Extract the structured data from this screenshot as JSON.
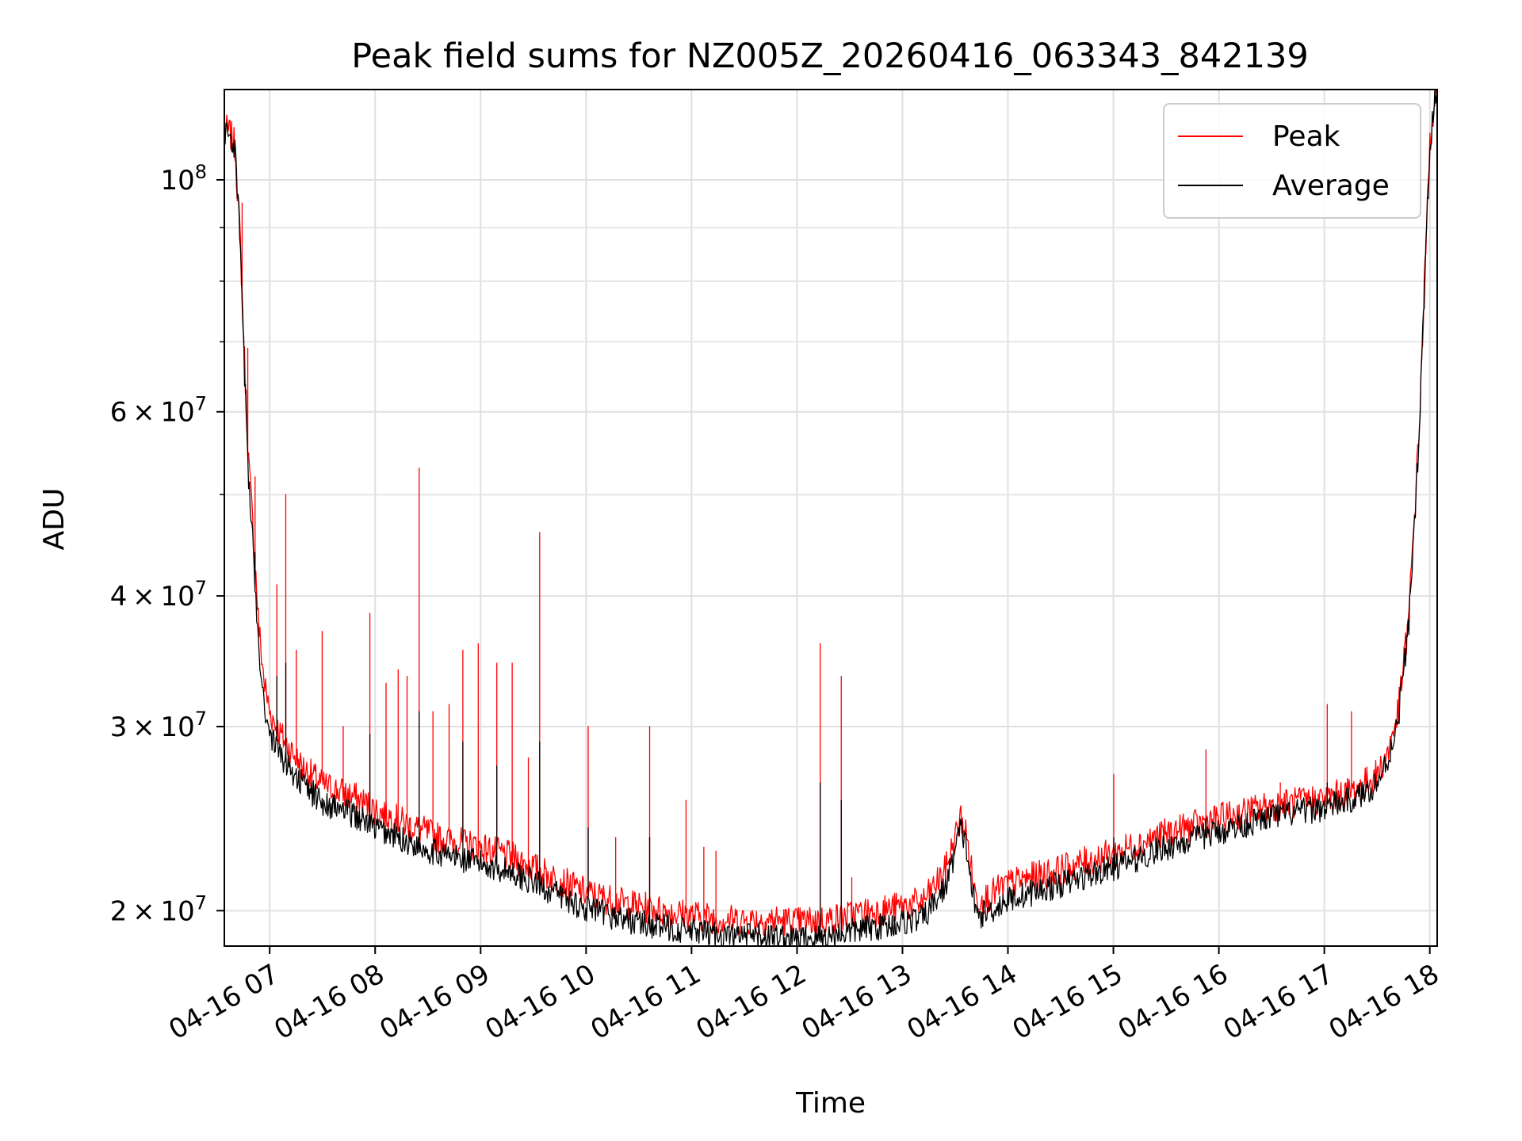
{
  "chart_data": {
    "type": "line",
    "title": "Peak field sums for NZ005Z_20260416_063343_842139",
    "xlabel": "Time",
    "ylabel": "ADU",
    "yscale": "log",
    "x_unit": "hours",
    "xlim": [
      6.57,
      18.07
    ],
    "ylim": [
      18500000,
      122000000
    ],
    "grid": true,
    "legend_position": "top-right",
    "x_ticks": [
      {
        "value": 7,
        "label": "04-16 07"
      },
      {
        "value": 8,
        "label": "04-16 08"
      },
      {
        "value": 9,
        "label": "04-16 09"
      },
      {
        "value": 10,
        "label": "04-16 10"
      },
      {
        "value": 11,
        "label": "04-16 11"
      },
      {
        "value": 12,
        "label": "04-16 12"
      },
      {
        "value": 13,
        "label": "04-16 13"
      },
      {
        "value": 14,
        "label": "04-16 14"
      },
      {
        "value": 15,
        "label": "04-16 15"
      },
      {
        "value": 16,
        "label": "04-16 16"
      },
      {
        "value": 17,
        "label": "04-16 17"
      },
      {
        "value": 18,
        "label": "04-16 18"
      }
    ],
    "y_ticks": [
      {
        "value": 20000000,
        "mantissa": "2",
        "exponent": "7"
      },
      {
        "value": 30000000,
        "mantissa": "3",
        "exponent": "7"
      },
      {
        "value": 40000000,
        "mantissa": "4",
        "exponent": "7"
      },
      {
        "value": 60000000,
        "mantissa": "6",
        "exponent": "7"
      },
      {
        "value": 100000000,
        "mantissa": "",
        "exponent": "8"
      }
    ],
    "y_minor_ticks": [
      50000000,
      70000000,
      80000000,
      90000000
    ],
    "series": [
      {
        "name": "Peak",
        "color": "#ff0000",
        "x": [
          6.57,
          6.62,
          6.67,
          6.72,
          6.76,
          6.8,
          6.85,
          6.9,
          6.95,
          7.0,
          7.1,
          7.3,
          7.5,
          7.8,
          8.0,
          8.3,
          8.6,
          9.0,
          9.3,
          9.5,
          9.7,
          10.0,
          10.3,
          10.6,
          11.0,
          11.4,
          11.8,
          12.0,
          12.3,
          12.6,
          12.9,
          13.2,
          13.4,
          13.5,
          13.55,
          13.6,
          13.65,
          13.7,
          13.8,
          14.0,
          14.5,
          15.0,
          15.5,
          16.0,
          16.5,
          17.0,
          17.3,
          17.5,
          17.6,
          17.7,
          17.8,
          17.9,
          17.95,
          18.0,
          18.05
        ],
        "y": [
          112000000,
          111000000,
          108000000,
          88000000,
          68000000,
          54000000,
          45000000,
          37000000,
          33000000,
          31000000,
          29500000,
          27500000,
          26400000,
          25700000,
          25000000,
          24200000,
          23500000,
          23000000,
          22500000,
          22000000,
          21500000,
          20800000,
          20400000,
          20100000,
          19800000,
          19600000,
          19600000,
          19500000,
          19600000,
          19900000,
          20100000,
          20400000,
          21800000,
          23500000,
          24600000,
          23800000,
          22000000,
          20500000,
          20600000,
          21200000,
          21900000,
          22700000,
          23700000,
          24500000,
          25200000,
          25600000,
          26100000,
          27000000,
          28300000,
          31000000,
          38000000,
          58000000,
          80000000,
          108000000,
          121000000
        ],
        "spikes": [
          {
            "x": 6.74,
            "y": 95000000
          },
          {
            "x": 6.79,
            "y": 69000000
          },
          {
            "x": 6.86,
            "y": 52000000
          },
          {
            "x": 7.07,
            "y": 41000000
          },
          {
            "x": 7.15,
            "y": 50000000
          },
          {
            "x": 7.25,
            "y": 35500000
          },
          {
            "x": 7.5,
            "y": 37000000
          },
          {
            "x": 7.7,
            "y": 30000000
          },
          {
            "x": 7.95,
            "y": 38500000
          },
          {
            "x": 8.1,
            "y": 33000000
          },
          {
            "x": 8.22,
            "y": 34000000
          },
          {
            "x": 8.3,
            "y": 33500000
          },
          {
            "x": 8.42,
            "y": 53000000
          },
          {
            "x": 8.55,
            "y": 31000000
          },
          {
            "x": 8.7,
            "y": 31500000
          },
          {
            "x": 8.83,
            "y": 35500000
          },
          {
            "x": 8.98,
            "y": 36000000
          },
          {
            "x": 9.15,
            "y": 34500000
          },
          {
            "x": 9.3,
            "y": 34500000
          },
          {
            "x": 9.45,
            "y": 28000000
          },
          {
            "x": 9.56,
            "y": 46000000
          },
          {
            "x": 10.02,
            "y": 30000000
          },
          {
            "x": 10.28,
            "y": 23500000
          },
          {
            "x": 10.6,
            "y": 30000000
          },
          {
            "x": 10.95,
            "y": 25500000
          },
          {
            "x": 11.12,
            "y": 23000000
          },
          {
            "x": 11.23,
            "y": 22800000
          },
          {
            "x": 12.22,
            "y": 36000000
          },
          {
            "x": 12.42,
            "y": 33500000
          },
          {
            "x": 12.52,
            "y": 21500000
          },
          {
            "x": 15.0,
            "y": 27000000
          },
          {
            "x": 15.88,
            "y": 28500000
          },
          {
            "x": 16.58,
            "y": 26500000
          },
          {
            "x": 17.03,
            "y": 31500000
          },
          {
            "x": 17.26,
            "y": 31000000
          }
        ]
      },
      {
        "name": "Average",
        "color": "#000000",
        "x": [
          6.57,
          6.62,
          6.67,
          6.72,
          6.76,
          6.8,
          6.85,
          6.9,
          6.95,
          7.0,
          7.1,
          7.3,
          7.5,
          7.8,
          8.0,
          8.3,
          8.6,
          9.0,
          9.3,
          9.5,
          9.7,
          10.0,
          10.3,
          10.6,
          11.0,
          11.4,
          11.8,
          12.0,
          12.3,
          12.6,
          12.9,
          13.2,
          13.4,
          13.5,
          13.55,
          13.6,
          13.65,
          13.7,
          13.8,
          14.0,
          14.5,
          15.0,
          15.5,
          16.0,
          16.5,
          17.0,
          17.3,
          17.5,
          17.6,
          17.7,
          17.8,
          17.9,
          17.95,
          18.0,
          18.05
        ],
        "y": [
          111500000,
          110500000,
          107000000,
          87000000,
          66000000,
          52000000,
          43000000,
          35500000,
          31500000,
          29500000,
          28200000,
          26500000,
          25400000,
          24700000,
          24000000,
          23300000,
          22700000,
          22200000,
          21800000,
          21300000,
          20800000,
          20100000,
          19700000,
          19400000,
          19100000,
          18900000,
          18900000,
          18800000,
          18900000,
          19200000,
          19400000,
          19700000,
          21000000,
          22800000,
          24000000,
          23200000,
          21300000,
          19800000,
          19900000,
          20500000,
          21200000,
          22000000,
          23000000,
          23800000,
          24600000,
          25100000,
          25600000,
          26500000,
          27800000,
          30500000,
          37500000,
          57000000,
          79000000,
          107000000,
          120000000
        ],
        "spikes": [
          {
            "x": 6.86,
            "y": 44000000
          },
          {
            "x": 7.07,
            "y": 33500000
          },
          {
            "x": 7.15,
            "y": 34500000
          },
          {
            "x": 7.95,
            "y": 29500000
          },
          {
            "x": 8.42,
            "y": 31000000
          },
          {
            "x": 8.83,
            "y": 29000000
          },
          {
            "x": 9.15,
            "y": 27500000
          },
          {
            "x": 9.56,
            "y": 29000000
          },
          {
            "x": 10.02,
            "y": 24000000
          },
          {
            "x": 10.6,
            "y": 23500000
          },
          {
            "x": 12.22,
            "y": 26500000
          },
          {
            "x": 12.42,
            "y": 25500000
          },
          {
            "x": 15.0,
            "y": 23500000
          },
          {
            "x": 15.88,
            "y": 24500000
          },
          {
            "x": 17.03,
            "y": 26500000
          }
        ]
      }
    ]
  }
}
